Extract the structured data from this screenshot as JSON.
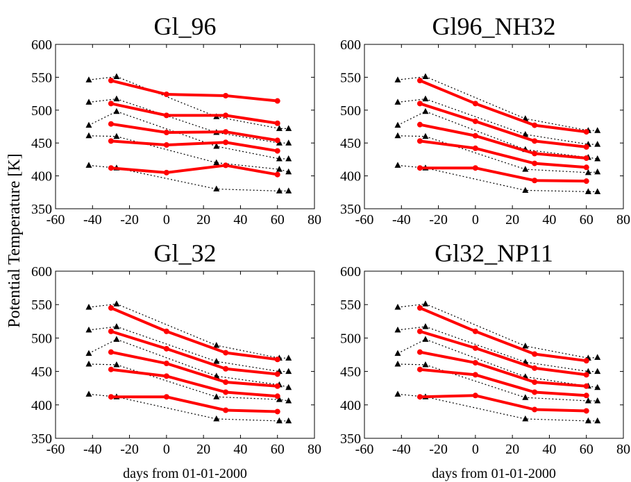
{
  "figure": {
    "shared_ylabel": "Potential Temperature [K]",
    "shared_xlabel": "days from 01-01-2000"
  },
  "styles": {
    "model_color": "#ff0000",
    "obs_color": "#000000",
    "obs_marker": "triangle",
    "obs_line": "dotted",
    "model_marker": "circle"
  },
  "chart_data": [
    {
      "type": "line",
      "title": "Gl_96",
      "xlim": [
        -60,
        80
      ],
      "ylim": [
        350,
        600
      ],
      "xticks": [
        -60,
        -40,
        -20,
        0,
        20,
        40,
        60,
        80
      ],
      "yticks": [
        350,
        400,
        450,
        500,
        550,
        600
      ],
      "grid": false,
      "xlabel": "",
      "model_series": [
        {
          "x": [
            -30,
            0,
            32,
            60
          ],
          "y": [
            545,
            524,
            522,
            514
          ]
        },
        {
          "x": [
            -30,
            0,
            32,
            60
          ],
          "y": [
            510,
            492,
            492,
            480
          ]
        },
        {
          "x": [
            -30,
            0,
            32,
            60
          ],
          "y": [
            479,
            466,
            467,
            454
          ]
        },
        {
          "x": [
            -30,
            0,
            32,
            60
          ],
          "y": [
            453,
            447,
            451,
            438
          ]
        },
        {
          "x": [
            -30,
            0,
            32,
            60
          ],
          "y": [
            412,
            405,
            416,
            402
          ]
        }
      ],
      "obs_series": [
        {
          "x": [
            -42,
            -27,
            27,
            61,
            66
          ],
          "y": [
            546,
            551,
            490,
            472,
            472
          ]
        },
        {
          "x": [
            -42,
            -27,
            27,
            61,
            66
          ],
          "y": [
            512,
            517,
            466,
            450,
            450
          ]
        },
        {
          "x": [
            -42,
            -27,
            27,
            61,
            66
          ],
          "y": [
            477,
            498,
            445,
            426,
            426
          ]
        },
        {
          "x": [
            -42,
            -27,
            27,
            61,
            66
          ],
          "y": [
            461,
            460,
            420,
            410,
            406
          ]
        },
        {
          "x": [
            -42,
            -27,
            27,
            61,
            66
          ],
          "y": [
            416,
            412,
            380,
            377,
            377
          ]
        }
      ]
    },
    {
      "type": "line",
      "title": "Gl96_NH32",
      "xlim": [
        -60,
        80
      ],
      "ylim": [
        350,
        600
      ],
      "xticks": [
        -60,
        -40,
        -20,
        0,
        20,
        40,
        60,
        80
      ],
      "yticks": [
        350,
        400,
        450,
        500,
        550,
        600
      ],
      "grid": false,
      "xlabel": "",
      "model_series": [
        {
          "x": [
            -30,
            0,
            32,
            60
          ],
          "y": [
            545,
            510,
            477,
            467
          ]
        },
        {
          "x": [
            -30,
            0,
            32,
            60
          ],
          "y": [
            510,
            483,
            453,
            444
          ]
        },
        {
          "x": [
            -30,
            0,
            32,
            60
          ],
          "y": [
            478,
            461,
            434,
            427
          ]
        },
        {
          "x": [
            -30,
            0,
            32,
            60
          ],
          "y": [
            453,
            442,
            419,
            413
          ]
        },
        {
          "x": [
            -30,
            0,
            32,
            60
          ],
          "y": [
            412,
            412,
            393,
            392
          ]
        }
      ],
      "obs_series": [
        {
          "x": [
            -42,
            -27,
            27,
            61,
            66
          ],
          "y": [
            546,
            551,
            487,
            469,
            469
          ]
        },
        {
          "x": [
            -42,
            -27,
            27,
            61,
            66
          ],
          "y": [
            512,
            517,
            463,
            448,
            448
          ]
        },
        {
          "x": [
            -42,
            -27,
            27,
            61,
            66
          ],
          "y": [
            477,
            498,
            440,
            428,
            426
          ]
        },
        {
          "x": [
            -42,
            -27,
            27,
            61,
            66
          ],
          "y": [
            461,
            460,
            410,
            405,
            406
          ]
        },
        {
          "x": [
            -42,
            -27,
            27,
            61,
            66
          ],
          "y": [
            416,
            412,
            378,
            376,
            376
          ]
        }
      ]
    },
    {
      "type": "line",
      "title": "Gl_32",
      "xlim": [
        -60,
        80
      ],
      "ylim": [
        350,
        600
      ],
      "xticks": [
        -60,
        -40,
        -20,
        0,
        20,
        40,
        60,
        80
      ],
      "yticks": [
        350,
        400,
        450,
        500,
        550,
        600
      ],
      "grid": false,
      "xlabel": "days from 01-01-2000",
      "model_series": [
        {
          "x": [
            -30,
            0,
            32,
            60
          ],
          "y": [
            545,
            510,
            478,
            468
          ]
        },
        {
          "x": [
            -30,
            0,
            32,
            60
          ],
          "y": [
            510,
            484,
            454,
            446
          ]
        },
        {
          "x": [
            -30,
            0,
            32,
            60
          ],
          "y": [
            479,
            462,
            434,
            428
          ]
        },
        {
          "x": [
            -30,
            0,
            32,
            60
          ],
          "y": [
            453,
            443,
            419,
            413
          ]
        },
        {
          "x": [
            -30,
            0,
            32,
            60
          ],
          "y": [
            412,
            412,
            392,
            390
          ]
        }
      ],
      "obs_series": [
        {
          "x": [
            -42,
            -27,
            27,
            61,
            66
          ],
          "y": [
            546,
            551,
            489,
            470,
            470
          ]
        },
        {
          "x": [
            -42,
            -27,
            27,
            61,
            66
          ],
          "y": [
            512,
            517,
            465,
            450,
            450
          ]
        },
        {
          "x": [
            -42,
            -27,
            27,
            61,
            66
          ],
          "y": [
            477,
            498,
            443,
            430,
            426
          ]
        },
        {
          "x": [
            -42,
            -27,
            27,
            61,
            66
          ],
          "y": [
            461,
            460,
            412,
            408,
            406
          ]
        },
        {
          "x": [
            -42,
            -27,
            27,
            61,
            66
          ],
          "y": [
            416,
            412,
            379,
            376,
            376
          ]
        }
      ]
    },
    {
      "type": "line",
      "title": "Gl32_NP11",
      "xlim": [
        -60,
        80
      ],
      "ylim": [
        350,
        600
      ],
      "xticks": [
        -60,
        -40,
        -20,
        0,
        20,
        40,
        60,
        80
      ],
      "yticks": [
        350,
        400,
        450,
        500,
        550,
        600
      ],
      "grid": false,
      "xlabel": "days from 01-01-2000",
      "model_series": [
        {
          "x": [
            -30,
            0,
            32,
            60
          ],
          "y": [
            545,
            510,
            476,
            466
          ]
        },
        {
          "x": [
            -30,
            0,
            32,
            60
          ],
          "y": [
            510,
            485,
            455,
            445
          ]
        },
        {
          "x": [
            -30,
            0,
            32,
            60
          ],
          "y": [
            479,
            463,
            434,
            428
          ]
        },
        {
          "x": [
            -30,
            0,
            32,
            60
          ],
          "y": [
            453,
            445,
            419,
            414
          ]
        },
        {
          "x": [
            -30,
            0,
            32,
            60
          ],
          "y": [
            412,
            414,
            393,
            391
          ]
        }
      ],
      "obs_series": [
        {
          "x": [
            -42,
            -27,
            27,
            61,
            66
          ],
          "y": [
            546,
            551,
            488,
            470,
            471
          ]
        },
        {
          "x": [
            -42,
            -27,
            27,
            61,
            66
          ],
          "y": [
            512,
            517,
            464,
            450,
            450
          ]
        },
        {
          "x": [
            -42,
            -27,
            27,
            61,
            66
          ],
          "y": [
            477,
            498,
            442,
            428,
            426
          ]
        },
        {
          "x": [
            -42,
            -27,
            27,
            61,
            66
          ],
          "y": [
            461,
            460,
            411,
            406,
            406
          ]
        },
        {
          "x": [
            -42,
            -27,
            27,
            61,
            66
          ],
          "y": [
            416,
            412,
            379,
            376,
            376
          ]
        }
      ]
    }
  ]
}
